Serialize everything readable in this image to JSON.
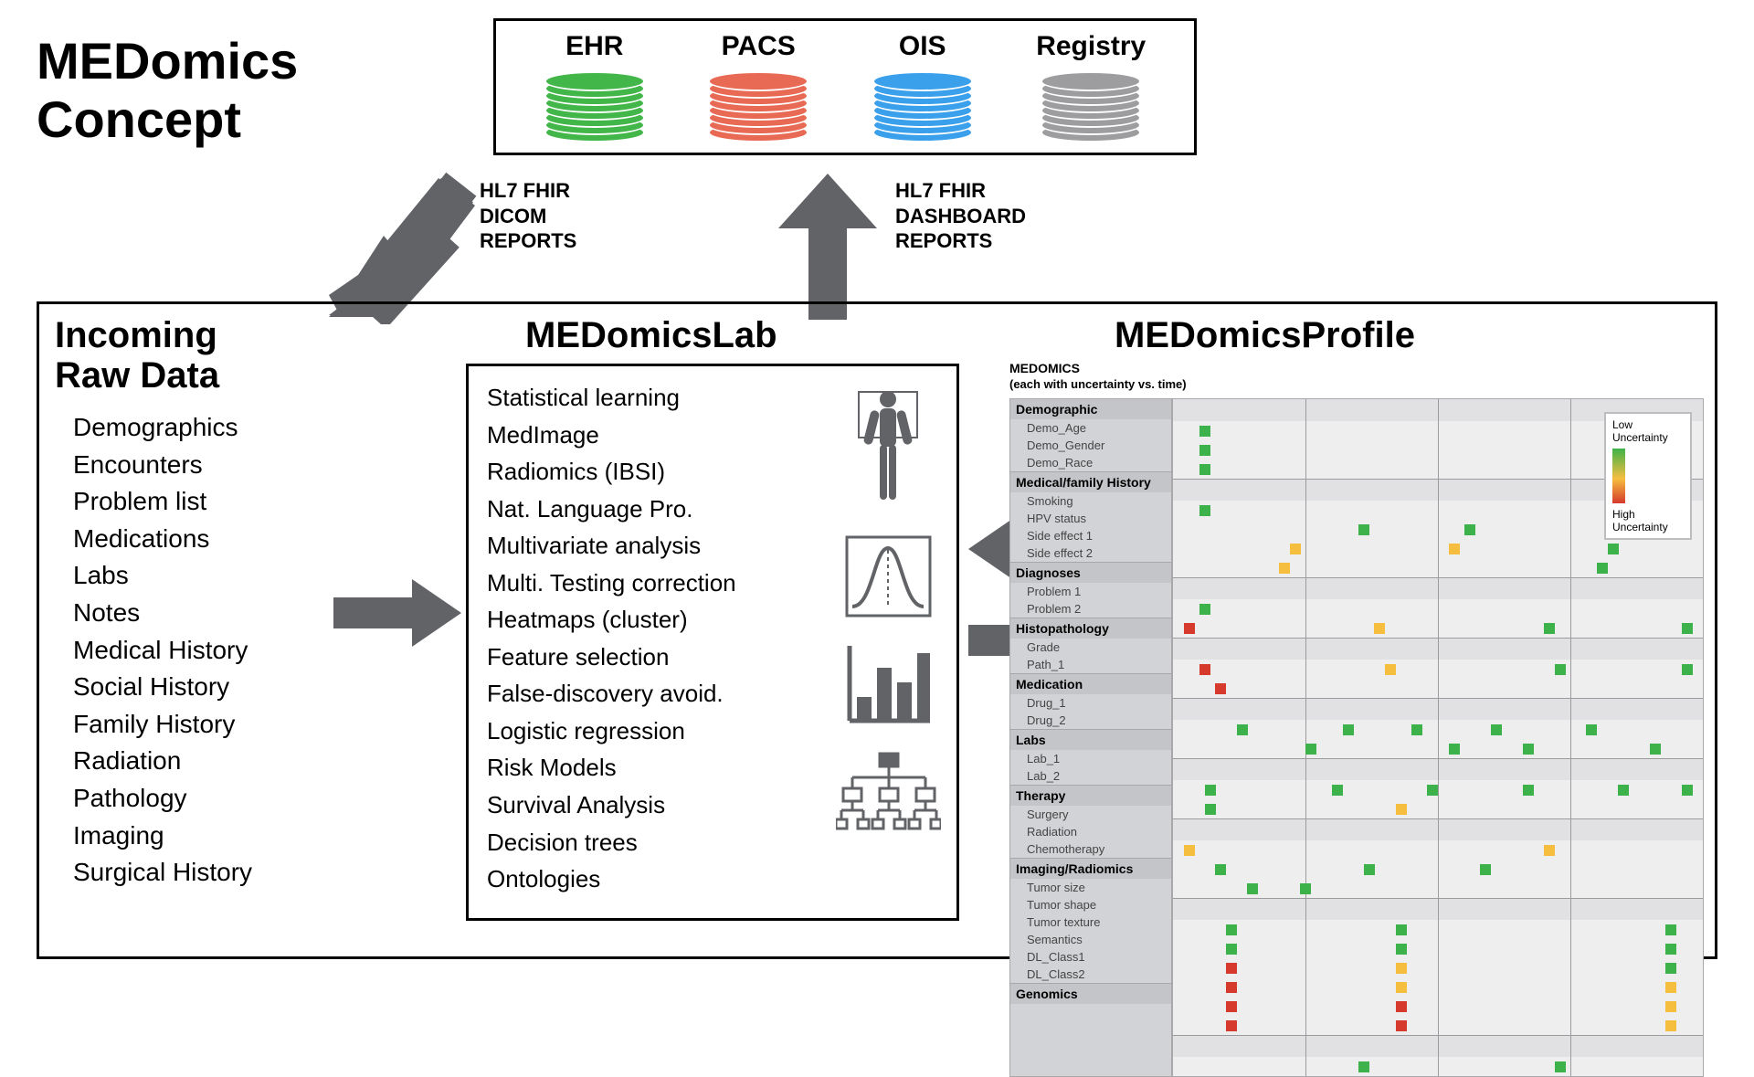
{
  "title_line1": "MEDomics",
  "title_line2": "Concept",
  "sources": [
    {
      "label": "EHR",
      "color": "#43b649"
    },
    {
      "label": "PACS",
      "color": "#e96a54"
    },
    {
      "label": "OIS",
      "color": "#3aa0ec"
    },
    {
      "label": "Registry",
      "color": "#9d9d9f"
    }
  ],
  "flow_left": {
    "l1": "HL7 FHIR",
    "l2": "DICOM",
    "l3": "REPORTS"
  },
  "flow_right": {
    "l1": "HL7 FHIR",
    "l2": "DASHBOARD",
    "l3": "REPORTS"
  },
  "arrow_color": "#626367",
  "section_titles": {
    "raw_l1": "Incoming",
    "raw_l2": "Raw Data",
    "lab": "MEDomicsLab",
    "prof": "MEDomicsProfile"
  },
  "raw_items": [
    "Demographics",
    "Encounters",
    "Problem list",
    "Medications",
    "Labs",
    "Notes",
    "Medical History",
    "Social History",
    "Family History",
    "Radiation",
    "Pathology",
    "Imaging",
    "Surgical History"
  ],
  "lab_items": [
    "Statistical learning",
    "MedImage",
    "Radiomics (IBSI)",
    "Nat. Language Pro.",
    "Multivariate analysis",
    "Multi. Testing correction",
    "Heatmaps (cluster)",
    "Feature selection",
    "False-discovery avoid.",
    "Logistic regression",
    "Risk Models",
    "Survival Analysis",
    "Decision trees",
    "Ontologies"
  ],
  "profile_header": "MEDOMICS",
  "profile_sub": "(each with uncertainty vs. time)",
  "legend": {
    "low": "Low",
    "unc": "Uncertainty",
    "high": "High"
  },
  "uncertainty_colors": {
    "green": "#3db24a",
    "orange": "#f6be3f",
    "red": "#d53a2c"
  },
  "time_columns": 4,
  "profile_groups": [
    {
      "name": "Demographic",
      "rows": [
        {
          "label": "Demo_Age",
          "cells": [
            [
              5,
              "green"
            ]
          ]
        },
        {
          "label": "Demo_Gender",
          "cells": [
            [
              5,
              "green"
            ]
          ]
        },
        {
          "label": "Demo_Race",
          "cells": [
            [
              5,
              "green"
            ]
          ]
        }
      ]
    },
    {
      "name": "Medical/family History",
      "rows": [
        {
          "label": "Smoking",
          "cells": [
            [
              5,
              "green"
            ]
          ]
        },
        {
          "label": "HPV status",
          "cells": [
            [
              35,
              "green"
            ],
            [
              55,
              "green"
            ]
          ]
        },
        {
          "label": "Side effect 1",
          "cells": [
            [
              22,
              "orange"
            ],
            [
              52,
              "orange"
            ],
            [
              82,
              "green"
            ]
          ]
        },
        {
          "label": "Side effect 2",
          "cells": [
            [
              20,
              "orange"
            ],
            [
              80,
              "green"
            ]
          ]
        }
      ]
    },
    {
      "name": "Diagnoses",
      "rows": [
        {
          "label": "Problem 1",
          "cells": [
            [
              5,
              "green"
            ]
          ]
        },
        {
          "label": "Problem 2",
          "cells": [
            [
              2,
              "red"
            ],
            [
              38,
              "orange"
            ],
            [
              70,
              "green"
            ],
            [
              96,
              "green"
            ]
          ]
        }
      ]
    },
    {
      "name": "Histopathology",
      "rows": [
        {
          "label": "Grade",
          "cells": [
            [
              5,
              "red"
            ],
            [
              40,
              "orange"
            ],
            [
              72,
              "green"
            ],
            [
              96,
              "green"
            ]
          ]
        },
        {
          "label": "Path_1",
          "cells": [
            [
              8,
              "red"
            ]
          ]
        }
      ]
    },
    {
      "name": "Medication",
      "rows": [
        {
          "label": "Drug_1",
          "cells": [
            [
              12,
              "green"
            ],
            [
              32,
              "green"
            ],
            [
              45,
              "green"
            ],
            [
              60,
              "green"
            ],
            [
              78,
              "green"
            ]
          ]
        },
        {
          "label": "Drug_2",
          "cells": [
            [
              25,
              "green"
            ],
            [
              52,
              "green"
            ],
            [
              66,
              "green"
            ],
            [
              90,
              "green"
            ]
          ]
        }
      ]
    },
    {
      "name": "Labs",
      "rows": [
        {
          "label": "Lab_1",
          "cells": [
            [
              6,
              "green"
            ],
            [
              30,
              "green"
            ],
            [
              48,
              "green"
            ],
            [
              66,
              "green"
            ],
            [
              84,
              "green"
            ],
            [
              96,
              "green"
            ]
          ]
        },
        {
          "label": "Lab_2",
          "cells": [
            [
              6,
              "green"
            ],
            [
              42,
              "orange"
            ]
          ]
        }
      ]
    },
    {
      "name": "Therapy",
      "rows": [
        {
          "label": "Surgery",
          "cells": [
            [
              2,
              "orange"
            ],
            [
              70,
              "orange"
            ]
          ]
        },
        {
          "label": "Radiation",
          "cells": [
            [
              8,
              "green"
            ],
            [
              36,
              "green"
            ],
            [
              58,
              "green"
            ]
          ]
        },
        {
          "label": "Chemotherapy",
          "cells": [
            [
              14,
              "green"
            ],
            [
              24,
              "green"
            ]
          ]
        }
      ]
    },
    {
      "name": "Imaging/Radiomics",
      "rows": [
        {
          "label": "Tumor size",
          "cells": [
            [
              10,
              "green"
            ],
            [
              42,
              "green"
            ],
            [
              93,
              "green"
            ]
          ]
        },
        {
          "label": "Tumor shape",
          "cells": [
            [
              10,
              "green"
            ],
            [
              42,
              "green"
            ],
            [
              93,
              "green"
            ]
          ]
        },
        {
          "label": "Tumor texture",
          "cells": [
            [
              10,
              "red"
            ],
            [
              42,
              "orange"
            ],
            [
              93,
              "green"
            ]
          ]
        },
        {
          "label": "Semantics",
          "cells": [
            [
              10,
              "red"
            ],
            [
              42,
              "orange"
            ],
            [
              93,
              "orange"
            ]
          ]
        },
        {
          "label": "DL_Class1",
          "cells": [
            [
              10,
              "red"
            ],
            [
              42,
              "red"
            ],
            [
              93,
              "orange"
            ]
          ]
        },
        {
          "label": "DL_Class2",
          "cells": [
            [
              10,
              "red"
            ],
            [
              42,
              "red"
            ],
            [
              93,
              "orange"
            ]
          ]
        }
      ]
    },
    {
      "name": "Genomics",
      "rows": [
        {
          "label": "",
          "cells": [
            [
              35,
              "green"
            ],
            [
              72,
              "green"
            ]
          ]
        }
      ]
    }
  ]
}
